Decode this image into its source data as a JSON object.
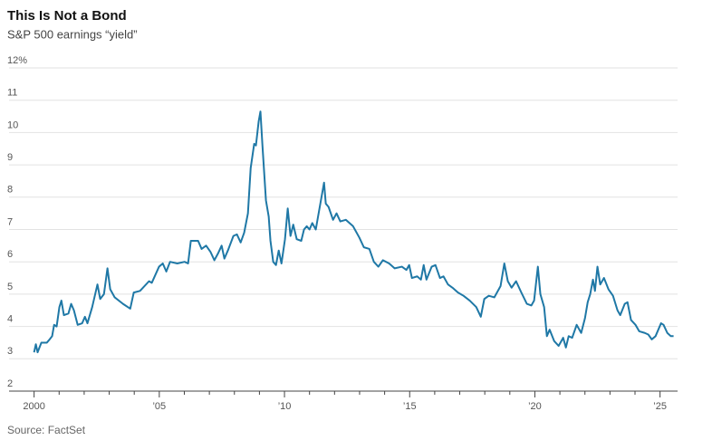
{
  "chart_data": {
    "type": "line",
    "title": "This Is Not a Bond",
    "subtitle": "S&P 500 earnings “yield”",
    "source": "Source: FactSet",
    "xlim": [
      1999,
      2025.7
    ],
    "xticks": [
      {
        "value": 2000,
        "label": "2000"
      },
      {
        "value": 2005,
        "label": "’05"
      },
      {
        "value": 2010,
        "label": "’10"
      },
      {
        "value": 2015,
        "label": "’15"
      },
      {
        "value": 2020,
        "label": "’20"
      },
      {
        "value": 2025,
        "label": "’25"
      }
    ],
    "xminorticks": [
      2001,
      2002,
      2003,
      2004,
      2006,
      2007,
      2008,
      2009,
      2011,
      2012,
      2013,
      2014,
      2016,
      2017,
      2018,
      2019,
      2021,
      2022,
      2023,
      2024
    ],
    "ylim": [
      2,
      12
    ],
    "yticks": [
      2,
      3,
      4,
      5,
      6,
      7,
      8,
      9,
      10,
      11,
      {
        "value": 12,
        "label": "12%"
      }
    ],
    "grid": true,
    "series": [
      {
        "color": "#1f78a6",
        "x": [
          2000.0,
          2000.07,
          2000.14,
          2000.29,
          2000.51,
          2000.62,
          2000.72,
          2000.8,
          2000.9,
          2001.01,
          2001.09,
          2001.19,
          2001.37,
          2001.48,
          2001.59,
          2001.74,
          2001.92,
          2002.03,
          2002.13,
          2002.32,
          2002.53,
          2002.64,
          2002.79,
          2002.93,
          2003.04,
          2003.22,
          2003.55,
          2003.84,
          2003.98,
          2004.23,
          2004.59,
          2004.7,
          2004.99,
          2005.14,
          2005.28,
          2005.43,
          2005.72,
          2006.01,
          2006.15,
          2006.26,
          2006.55,
          2006.69,
          2006.87,
          2007.05,
          2007.2,
          2007.34,
          2007.49,
          2007.6,
          2007.74,
          2007.96,
          2008.1,
          2008.25,
          2008.39,
          2008.54,
          2008.65,
          2008.79,
          2008.86,
          2008.97,
          2009.04,
          2009.12,
          2009.26,
          2009.37,
          2009.44,
          2009.55,
          2009.66,
          2009.77,
          2009.88,
          2010.02,
          2010.13,
          2010.24,
          2010.35,
          2010.49,
          2010.67,
          2010.78,
          2010.89,
          2011.0,
          2011.11,
          2011.25,
          2011.58,
          2011.65,
          2011.76,
          2011.94,
          2012.08,
          2012.23,
          2012.45,
          2012.74,
          2012.99,
          2013.17,
          2013.39,
          2013.57,
          2013.75,
          2013.93,
          2014.18,
          2014.4,
          2014.69,
          2014.87,
          2014.98,
          2015.09,
          2015.3,
          2015.45,
          2015.56,
          2015.67,
          2015.88,
          2016.03,
          2016.21,
          2016.35,
          2016.53,
          2016.71,
          2016.93,
          2017.15,
          2017.4,
          2017.66,
          2017.84,
          2017.98,
          2018.16,
          2018.38,
          2018.63,
          2018.78,
          2018.92,
          2019.07,
          2019.25,
          2019.46,
          2019.68,
          2019.86,
          2019.97,
          2020.12,
          2020.22,
          2020.37,
          2020.48,
          2020.59,
          2020.77,
          2020.95,
          2021.13,
          2021.24,
          2021.35,
          2021.49,
          2021.67,
          2021.85,
          2022.0,
          2022.11,
          2022.21,
          2022.32,
          2022.4,
          2022.5,
          2022.61,
          2022.76,
          2022.94,
          2023.12,
          2023.3,
          2023.41,
          2023.59,
          2023.7,
          2023.84,
          2024.02,
          2024.17,
          2024.39,
          2024.53,
          2024.67,
          2024.82,
          2025.04,
          2025.14,
          2025.29,
          2025.43,
          2025.54
        ],
        "values": [
          3.2,
          3.45,
          3.2,
          3.5,
          3.5,
          3.6,
          3.7,
          4.05,
          4.0,
          4.6,
          4.8,
          4.35,
          4.4,
          4.7,
          4.5,
          4.05,
          4.1,
          4.3,
          4.1,
          4.6,
          5.3,
          4.85,
          5.0,
          5.8,
          5.15,
          4.9,
          4.7,
          4.55,
          5.05,
          5.1,
          5.4,
          5.35,
          5.85,
          5.95,
          5.7,
          6.0,
          5.95,
          6.0,
          5.95,
          6.65,
          6.65,
          6.4,
          6.5,
          6.3,
          6.05,
          6.25,
          6.5,
          6.1,
          6.35,
          6.8,
          6.85,
          6.6,
          6.9,
          7.5,
          8.9,
          9.65,
          9.6,
          10.35,
          10.65,
          9.6,
          7.9,
          7.4,
          6.65,
          6.0,
          5.9,
          6.35,
          5.95,
          6.7,
          7.65,
          6.8,
          7.15,
          6.7,
          6.65,
          7.0,
          7.1,
          7.0,
          7.2,
          7.0,
          8.45,
          7.8,
          7.7,
          7.3,
          7.5,
          7.25,
          7.3,
          7.1,
          6.75,
          6.45,
          6.4,
          6.0,
          5.85,
          6.05,
          5.95,
          5.8,
          5.85,
          5.75,
          5.9,
          5.5,
          5.55,
          5.45,
          5.9,
          5.45,
          5.85,
          5.9,
          5.5,
          5.55,
          5.3,
          5.2,
          5.05,
          4.95,
          4.8,
          4.6,
          4.3,
          4.85,
          4.95,
          4.9,
          5.25,
          5.95,
          5.4,
          5.2,
          5.4,
          5.05,
          4.7,
          4.65,
          4.8,
          5.85,
          5.0,
          4.6,
          3.7,
          3.9,
          3.55,
          3.4,
          3.65,
          3.35,
          3.7,
          3.65,
          4.05,
          3.8,
          4.25,
          4.75,
          5.0,
          5.45,
          5.1,
          5.85,
          5.3,
          5.5,
          5.15,
          4.95,
          4.5,
          4.35,
          4.7,
          4.75,
          4.2,
          4.05,
          3.85,
          3.8,
          3.75,
          3.6,
          3.7,
          4.1,
          4.05,
          3.8,
          3.7,
          3.7
        ]
      }
    ]
  }
}
